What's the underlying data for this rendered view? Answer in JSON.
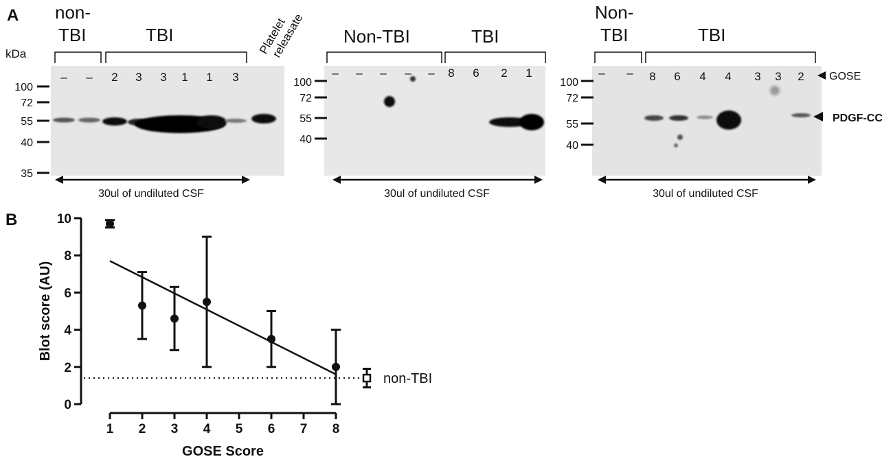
{
  "panel_a": {
    "label": "A",
    "kda_label": "kDa",
    "blot1": {
      "group_top_left_1": "non-",
      "group_top_left_2": "TBI",
      "group_right": "TBI",
      "platelet_1": "Platelet",
      "platelet_2": "releasate",
      "markers": [
        "100",
        "72",
        "55",
        "40",
        "35"
      ],
      "lanes": [
        "–",
        "–",
        "2",
        "3",
        "3",
        "1",
        "1",
        "3"
      ],
      "caption": "30ul of undiluted CSF"
    },
    "blot2": {
      "group_left": "Non-TBI",
      "group_right": "TBI",
      "markers": [
        "100",
        "72",
        "55",
        "40"
      ],
      "lanes": [
        "–",
        "–",
        "–",
        "–",
        "–",
        "8",
        "6",
        "2",
        "1"
      ],
      "caption": "30ul of undiluted CSF"
    },
    "blot3": {
      "group_left_1": "Non-",
      "group_left_2": "TBI",
      "group_right": "TBI",
      "markers": [
        "100",
        "72",
        "55",
        "40"
      ],
      "lanes": [
        "–",
        "–",
        "8",
        "6",
        "4",
        "4",
        "3",
        "3",
        "2"
      ],
      "caption": "30ul of undiluted CSF",
      "gose_label": "GOSE",
      "pdgf_label": "PDGF-CC"
    }
  },
  "panel_b": {
    "label": "B",
    "non_tbi_label": "non-TBI"
  },
  "chart_data": {
    "type": "scatter",
    "xlabel": "GOSE Score",
    "ylabel": "Blot score (AU)",
    "xticks": [
      "1",
      "2",
      "3",
      "4",
      "5",
      "6",
      "7",
      "8"
    ],
    "yticks": [
      "0",
      "2",
      "4",
      "6",
      "8",
      "10"
    ],
    "xlim": [
      1,
      8
    ],
    "ylim": [
      0,
      10
    ],
    "points": [
      {
        "x": 1,
        "y": 9.7,
        "lo": 9.5,
        "hi": 9.9
      },
      {
        "x": 2,
        "y": 5.3,
        "lo": 3.5,
        "hi": 7.1
      },
      {
        "x": 3,
        "y": 4.6,
        "lo": 2.9,
        "hi": 6.3
      },
      {
        "x": 4,
        "y": 5.5,
        "lo": 2.0,
        "hi": 9.0
      },
      {
        "x": 6,
        "y": 3.5,
        "lo": 2.0,
        "hi": 5.0
      },
      {
        "x": 8,
        "y": 2.0,
        "lo": 0.0,
        "hi": 4.0
      }
    ],
    "non_tbi": {
      "y": 1.4,
      "lo": 0.9,
      "hi": 1.9
    },
    "fit_line": {
      "x0": 1,
      "y0": 7.7,
      "x1": 8,
      "y1": 1.6
    },
    "reference_line_y": 1.4
  }
}
